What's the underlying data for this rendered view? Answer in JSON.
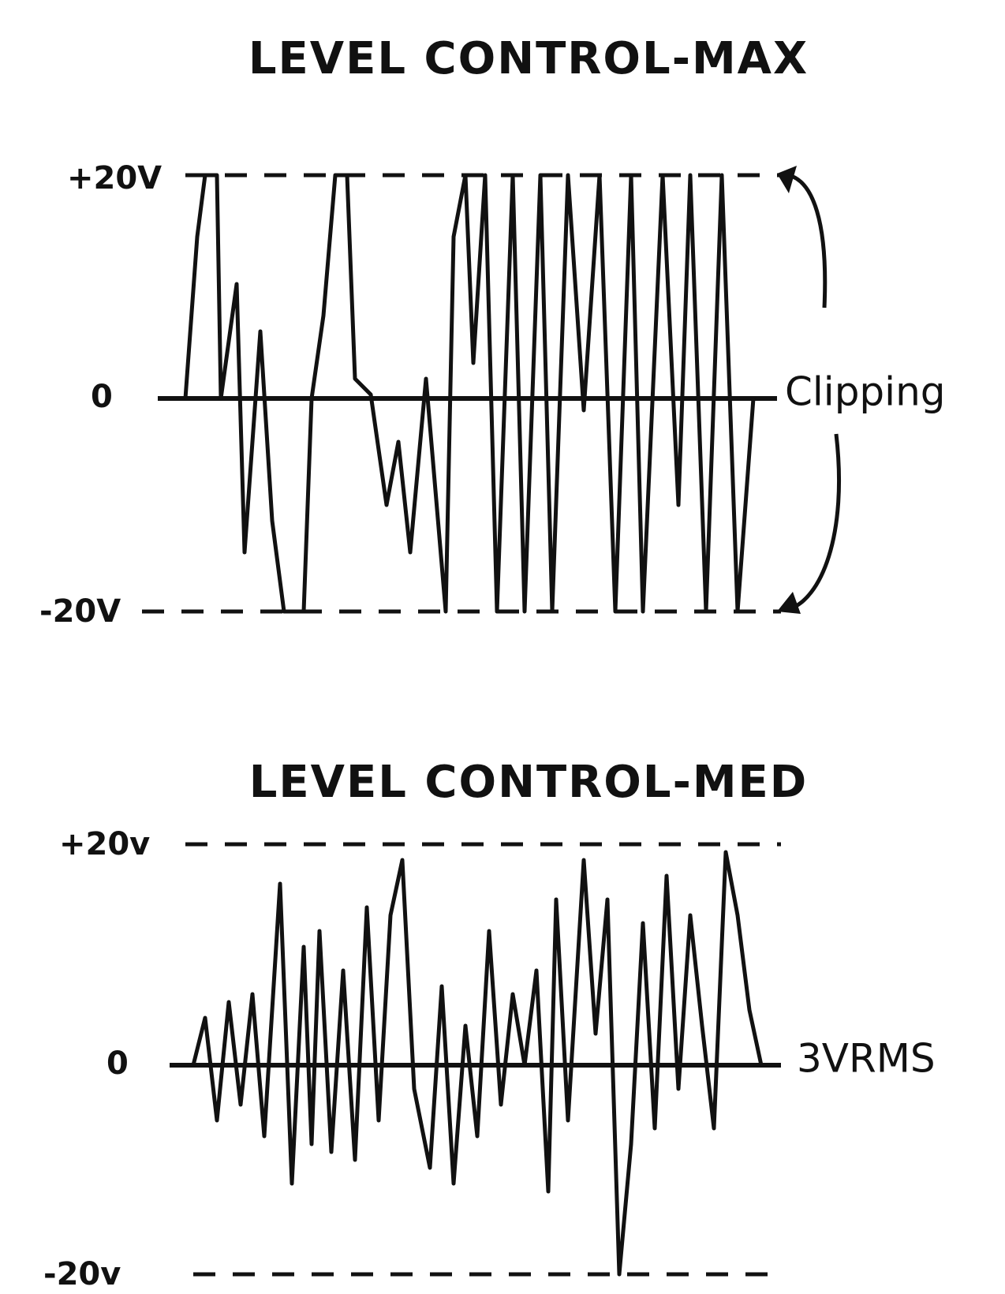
{
  "panels": [
    {
      "title": "LEVEL CONTROL-MAX",
      "top_label": "+20V",
      "zero_label": "0",
      "bottom_label": "-20V",
      "annotation": "Clipping"
    },
    {
      "title": "LEVEL CONTROL-MED",
      "top_label": "+20v",
      "zero_label": "0",
      "bottom_label": "-20v",
      "annotation": "3VRMS"
    }
  ]
}
